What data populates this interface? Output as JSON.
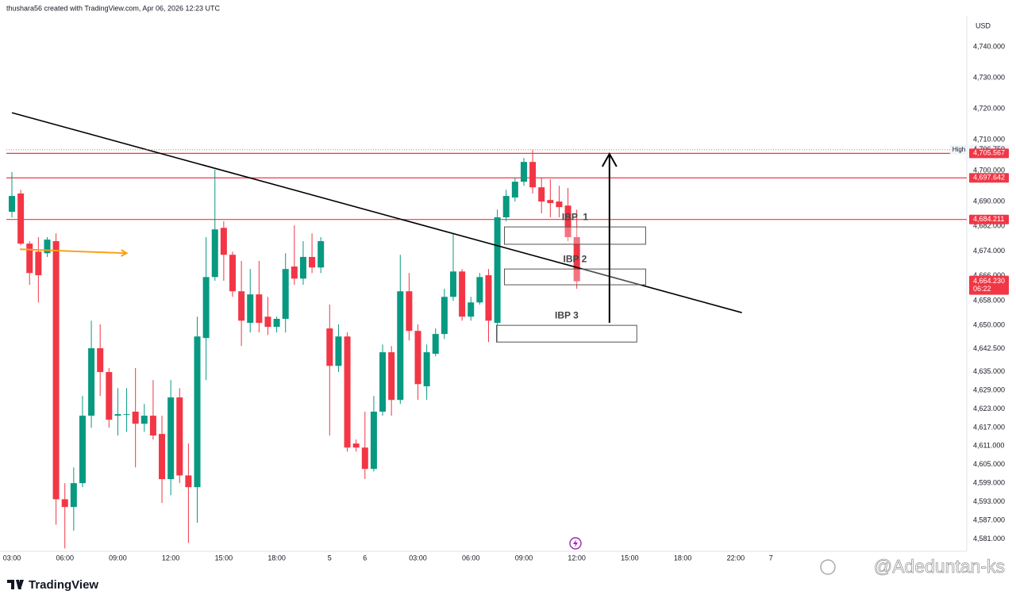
{
  "header": "thushara56 created with TradingView.com, Apr 06, 2026 12:23 UTC",
  "brand": "TradingView",
  "watermark": "@Adeduntan-ks",
  "chart_data": {
    "type": "candlestick",
    "currency": "USD",
    "up_color": "#089981",
    "down_color": "#f23645",
    "grid": false,
    "ylim": [
      4577,
      4750
    ],
    "yticks": [
      {
        "value": 4740,
        "label": "4,740.000"
      },
      {
        "value": 4730,
        "label": "4,730.000"
      },
      {
        "value": 4720,
        "label": "4,720.000"
      },
      {
        "value": 4710,
        "label": "4,710.000"
      },
      {
        "value": 4700,
        "label": "4,700.000"
      },
      {
        "value": 4690,
        "label": "4,690.000"
      },
      {
        "value": 4682,
        "label": "4,682.000"
      },
      {
        "value": 4674,
        "label": "4,674.000"
      },
      {
        "value": 4666,
        "label": "4,666.000"
      },
      {
        "value": 4658,
        "label": "4,658.000"
      },
      {
        "value": 4650,
        "label": "4,650.000"
      },
      {
        "value": 4642.5,
        "label": "4,642.500"
      },
      {
        "value": 4635,
        "label": "4,635.000"
      },
      {
        "value": 4629,
        "label": "4,629.000"
      },
      {
        "value": 4623,
        "label": "4,623.000"
      },
      {
        "value": 4617,
        "label": "4,617.000"
      },
      {
        "value": 4611,
        "label": "4,611.000"
      },
      {
        "value": 4605,
        "label": "4,605.000"
      },
      {
        "value": 4599,
        "label": "4,599.000"
      },
      {
        "value": 4593,
        "label": "4,593.000"
      },
      {
        "value": 4587,
        "label": "4,587.000"
      },
      {
        "value": 4581,
        "label": "4,581.000"
      }
    ],
    "categories": [
      "03:00",
      null,
      null,
      null,
      null,
      null,
      "06:00",
      null,
      null,
      null,
      null,
      null,
      "09:00",
      null,
      null,
      null,
      null,
      null,
      "12:00",
      null,
      null,
      null,
      null,
      null,
      "15:00",
      null,
      null,
      null,
      null,
      null,
      "18:00",
      null,
      null,
      null,
      null,
      null,
      "5",
      null,
      null,
      null,
      "6",
      null,
      null,
      null,
      null,
      null,
      "03:00",
      null,
      null,
      null,
      null,
      null,
      "06:00",
      null,
      null,
      null,
      null,
      null,
      "09:00",
      null,
      null,
      null,
      null,
      null,
      "12:00",
      null,
      null,
      null,
      null,
      null,
      "15:00",
      null,
      null,
      null,
      null,
      null,
      "18:00",
      null,
      null,
      null,
      null,
      null,
      "22:00",
      null,
      null,
      null,
      "7"
    ],
    "open": [
      4686.7,
      4692.6,
      4676.4,
      4673.8,
      4673.3,
      4677.2,
      4593.8,
      4591.3,
      4599,
      4620.8,
      4642.6,
      4634.9,
      4620.8,
      4621.3,
      4622.1,
      4618.2,
      4620.8,
      4614.9,
      4600.3,
      4626.7,
      4601.5,
      4597.7,
      4645.9,
      4665.6,
      4681.5,
      4672.8,
      4661,
      4650.8,
      4660,
      4652.8,
      4649.5,
      4652.1,
      4669,
      4665.1,
      4672.1,
      4668.7,
      4649,
      4636.9,
      4646.4,
      4611.8,
      4610.5,
      4603.6,
      4622.1,
      4641.3,
      4625.9,
      4661,
      4648.2,
      4630.3,
      4640.8,
      4647.2,
      4659.2,
      4667.4,
      4652.8,
      4657.4,
      4666.2,
      4650.8,
      4684.9,
      4691.3,
      4696.4,
      4702.8,
      4694.6,
      4690.5,
      4690,
      4688.7,
      4678.5,
      null,
      null,
      null,
      null,
      null,
      null,
      null,
      null,
      null,
      null,
      null,
      null,
      null,
      null,
      null,
      null,
      null,
      null,
      null,
      null,
      null,
      null
    ],
    "high": [
      4699.5,
      4693.8,
      4677.2,
      4678.5,
      4678.5,
      4679.7,
      4599,
      4604.1,
      4627.2,
      4651.5,
      4650.3,
      4636.2,
      4629.7,
      4629.7,
      4636.2,
      4624.6,
      4632.3,
      4620.8,
      4632.3,
      4629.7,
      4611.8,
      4652.8,
      4678.5,
      4700.3,
      4683.6,
      4673.8,
      4670.8,
      4668.2,
      4670.8,
      4659.2,
      4652.8,
      4673.3,
      4682.3,
      4677.2,
      4679.7,
      4678.5,
      4656.7,
      4650.3,
      4647.7,
      4613.1,
      4622.1,
      4627.2,
      4643.8,
      4643.3,
      4672.8,
      4666.9,
      4650.3,
      4643.8,
      4649,
      4661.8,
      4679.7,
      4668.2,
      4659.2,
      4666.9,
      4668.2,
      4687.4,
      4693.8,
      4697.7,
      4704.1,
      4706.75,
      4697.7,
      4697.2,
      4695.1,
      4694.4,
      4687.4,
      null,
      null,
      null,
      null,
      null,
      null,
      null,
      null,
      null,
      null,
      null,
      null,
      null,
      null,
      null,
      null,
      null,
      null,
      null,
      null,
      null,
      null
    ],
    "low": [
      4684.9,
      4675.9,
      4663.1,
      4657.4,
      4672.1,
      4585.6,
      4577.9,
      4583.6,
      4597.7,
      4616.9,
      4627.2,
      4616.9,
      4614.4,
      4615.6,
      4604.1,
      4615.6,
      4613.1,
      4592.6,
      4595.1,
      4599,
      4579.7,
      4586.2,
      4632.3,
      4664.4,
      4664.4,
      4659.2,
      4643.3,
      4647.7,
      4647.7,
      4646.9,
      4647.7,
      4647.7,
      4663.1,
      4663.1,
      4666.9,
      4666.9,
      4614.4,
      4634.9,
      4609.2,
      4609.2,
      4600.3,
      4602.8,
      4620.8,
      4620.8,
      4624.6,
      4645.1,
      4625.9,
      4625.9,
      4640,
      4645.6,
      4657.9,
      4651.5,
      4651.5,
      4656.7,
      4644.6,
      4644.6,
      4683.6,
      4690,
      4695.1,
      4692.6,
      4686.2,
      4684.9,
      4684.9,
      4677.2,
      4661.8,
      null,
      null,
      null,
      null,
      null,
      null,
      null,
      null,
      null,
      null,
      null,
      null,
      null,
      null,
      null,
      null,
      null,
      null,
      null,
      null,
      null,
      null
    ],
    "close": [
      4691.8,
      4676.4,
      4666.9,
      4666.2,
      4677.7,
      4593.8,
      4591.3,
      4599,
      4620.8,
      4642.6,
      4634.9,
      4619.5,
      4621.3,
      4621.3,
      4618.2,
      4620.8,
      4614.4,
      4600.3,
      4626.7,
      4601.5,
      4597.7,
      4646.4,
      4665.6,
      4681,
      4672.8,
      4661,
      4651.5,
      4660,
      4650.8,
      4649.5,
      4652.1,
      4668.2,
      4665.1,
      4672.1,
      4668.7,
      4677.2,
      4636.9,
      4646.4,
      4610.5,
      4610.5,
      4603.6,
      4622.1,
      4641.3,
      4625.9,
      4661,
      4648.2,
      4631,
      4641.3,
      4647.2,
      4659.2,
      4667.4,
      4652.8,
      4657.4,
      4665.6,
      4651.5,
      4684.9,
      4691.8,
      4696.4,
      4702.8,
      4694.6,
      4690,
      4689.5,
      4688.2,
      4678.5,
      4664.23,
      null,
      null,
      null,
      null,
      null,
      null,
      null,
      null,
      null,
      null,
      null,
      null,
      null,
      null,
      null,
      null,
      null,
      null,
      null,
      null,
      null,
      null
    ],
    "price_lines": [
      {
        "value": 4705.567,
        "label": "4,705.567"
      },
      {
        "value": 4697.642,
        "label": "4,697.642"
      },
      {
        "value": 4684.211,
        "label": "4,684.211"
      }
    ],
    "price_line_color": "#f23645",
    "high_marker": {
      "name": "High",
      "value": 4706.75,
      "label": "4,706.750"
    },
    "last_price": {
      "value": 4664.23,
      "label": "4,664.230",
      "countdown": "06:22"
    },
    "trendline": {
      "x": [
        0,
        82.7
      ],
      "y": [
        4718.7,
        4654.1
      ],
      "color": "#000000"
    },
    "arrows": [
      {
        "x": [
          0.9,
          13
        ],
        "y": [
          4674.6,
          4673.3
        ],
        "color": "#f7a21b"
      },
      {
        "x": [
          67.7,
          67.7
        ],
        "y": [
          4650.8,
          4705.4
        ],
        "color": "#000000"
      }
    ],
    "zones": [
      {
        "label": "IBP  1",
        "x": [
          55.8,
          71.8
        ],
        "y": [
          4681.8,
          4676.2
        ]
      },
      {
        "label": "IBP 2",
        "x": [
          55.8,
          71.8
        ],
        "y": [
          4668.2,
          4663.1
        ]
      },
      {
        "label": "IBP 3",
        "x": [
          54.9,
          70.8
        ],
        "y": [
          4650,
          4644.6
        ]
      }
    ]
  }
}
